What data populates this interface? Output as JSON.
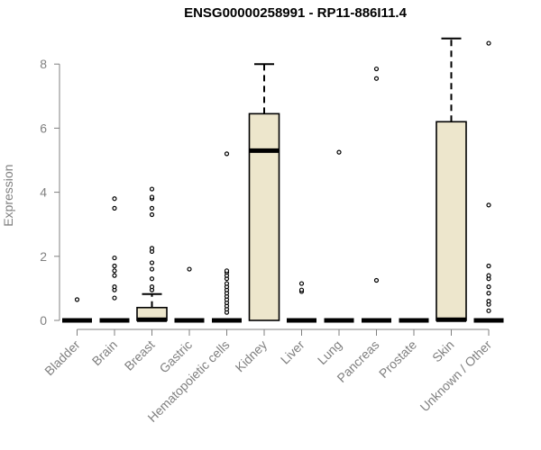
{
  "chart_data": {
    "type": "boxplot",
    "title": "ENSG00000258991 - RP11-886I11.4",
    "xlabel": "",
    "ylabel": "Expression",
    "ylim": [
      0,
      8.8
    ],
    "yticks": [
      0,
      2,
      4,
      6,
      8
    ],
    "box_color": "#ede6cc",
    "categories": [
      "Bladder",
      "Brain",
      "Breast",
      "Gastric",
      "Hematopoietic cells",
      "Kidney",
      "Liver",
      "Lung",
      "Pancreas",
      "Prostate",
      "Skin",
      "Unknown / Other"
    ],
    "boxes": [
      {
        "q1": 0,
        "median": 0,
        "q3": 0,
        "whisker_low": 0,
        "whisker_high": 0,
        "outliers": [
          0.65
        ]
      },
      {
        "q1": 0,
        "median": 0,
        "q3": 0,
        "whisker_low": 0,
        "whisker_high": 0,
        "outliers": [
          0.7,
          0.95,
          1.05,
          1.4,
          1.55,
          1.7,
          1.95,
          3.5,
          3.8
        ]
      },
      {
        "q1": 0,
        "median": 0.02,
        "q3": 0.4,
        "whisker_low": 0,
        "whisker_high": 0.82,
        "outliers": [
          0.95,
          1.05,
          1.3,
          1.6,
          1.8,
          2.15,
          2.25,
          3.3,
          3.5,
          3.8,
          3.85,
          4.1
        ]
      },
      {
        "q1": 0,
        "median": 0,
        "q3": 0,
        "whisker_low": 0,
        "whisker_high": 0,
        "outliers": [
          1.6
        ]
      },
      {
        "q1": 0,
        "median": 0,
        "q3": 0,
        "whisker_low": 0,
        "whisker_high": 0,
        "outliers": [
          0.25,
          0.35,
          0.45,
          0.55,
          0.65,
          0.75,
          0.85,
          0.95,
          1.05,
          1.15,
          1.3,
          1.4,
          1.5,
          1.55,
          5.2
        ]
      },
      {
        "q1": 0,
        "median": 5.3,
        "q3": 6.45,
        "whisker_low": 0,
        "whisker_high": 8.0,
        "outliers": []
      },
      {
        "q1": 0,
        "median": 0,
        "q3": 0,
        "whisker_low": 0,
        "whisker_high": 0,
        "outliers": [
          0.9,
          0.95,
          1.15
        ]
      },
      {
        "q1": 0,
        "median": 0,
        "q3": 0,
        "whisker_low": 0,
        "whisker_high": 0,
        "outliers": [
          5.25
        ]
      },
      {
        "q1": 0,
        "median": 0,
        "q3": 0,
        "whisker_low": 0,
        "whisker_high": 0,
        "outliers": [
          1.25,
          7.55,
          7.85
        ]
      },
      {
        "q1": 0,
        "median": 0,
        "q3": 0,
        "whisker_low": 0,
        "whisker_high": 0,
        "outliers": []
      },
      {
        "q1": 0,
        "median": 0.02,
        "q3": 6.2,
        "whisker_low": 0,
        "whisker_high": 8.8,
        "outliers": []
      },
      {
        "q1": 0,
        "median": 0,
        "q3": 0,
        "whisker_low": 0,
        "whisker_high": 0,
        "outliers": [
          0.3,
          0.5,
          0.6,
          0.85,
          1.05,
          1.3,
          1.4,
          1.7,
          3.6,
          8.65
        ]
      }
    ]
  }
}
